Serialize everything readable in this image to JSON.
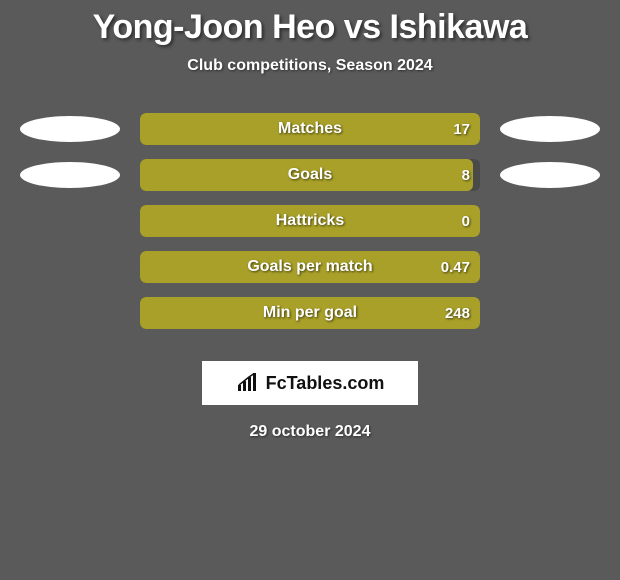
{
  "title": "Yong-Joon Heo vs Ishikawa",
  "subtitle": "Club competitions, Season 2024",
  "bar_fill_color": "#a8a028",
  "bar_bg_color": "#4a4a4a",
  "avatar_color": "#ffffff",
  "rows": [
    {
      "label": "Matches",
      "value": "17",
      "fill_pct": 100,
      "show_avatars": true
    },
    {
      "label": "Goals",
      "value": "8",
      "fill_pct": 98,
      "show_avatars": true
    },
    {
      "label": "Hattricks",
      "value": "0",
      "fill_pct": 100,
      "show_avatars": false
    },
    {
      "label": "Goals per match",
      "value": "0.47",
      "fill_pct": 100,
      "show_avatars": false
    },
    {
      "label": "Min per goal",
      "value": "248",
      "fill_pct": 100,
      "show_avatars": false
    }
  ],
  "logo_text": "FcTables.com",
  "date": "29 october 2024"
}
